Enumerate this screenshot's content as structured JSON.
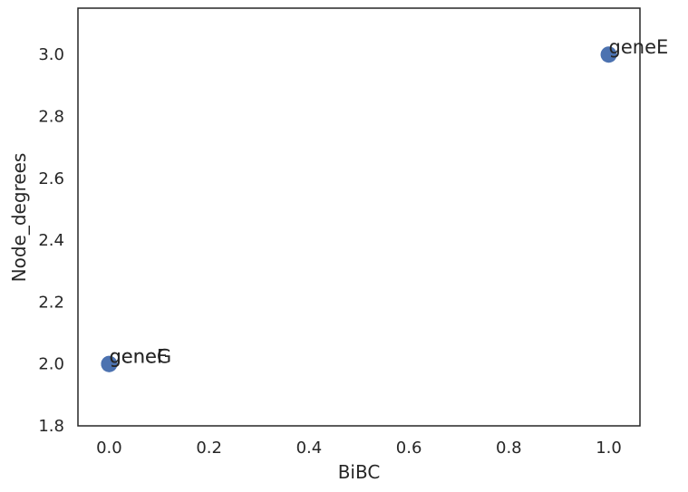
{
  "chart_data": {
    "type": "scatter",
    "title": "",
    "xlabel": "BiBC",
    "ylabel": "Node_degrees",
    "xlim": [
      -0.0625,
      1.0625
    ],
    "ylim": [
      1.8,
      3.15
    ],
    "xticks": [
      0.0,
      0.2,
      0.4,
      0.6,
      0.8,
      1.0
    ],
    "xtick_labels": [
      "0.0",
      "0.2",
      "0.4",
      "0.6",
      "0.8",
      "1.0"
    ],
    "yticks": [
      1.8,
      2.0,
      2.2,
      2.4,
      2.6,
      2.8,
      3.0
    ],
    "ytick_labels": [
      "1.8",
      "2.0",
      "2.2",
      "2.4",
      "2.6",
      "2.8",
      "3.0"
    ],
    "grid": false,
    "legend": "none",
    "point_color": "#4c72b0",
    "points": [
      {
        "x": 1.0,
        "y": 3.0,
        "label": "geneE"
      },
      {
        "x": 0.0,
        "y": 2.0,
        "label": "geneF"
      },
      {
        "x": 0.0,
        "y": 2.0,
        "label": "geneG"
      }
    ]
  }
}
